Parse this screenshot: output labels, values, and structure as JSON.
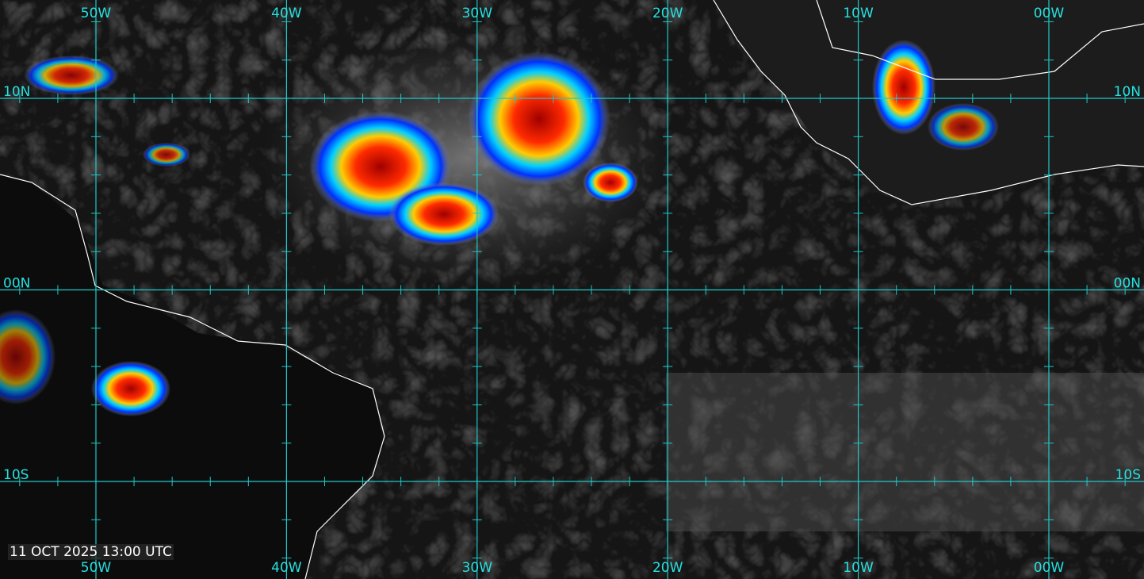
{
  "map": {
    "top_labels": [
      "50W",
      "40W",
      "30W",
      "20W",
      "10W",
      "00W"
    ],
    "bottom_labels": [
      "50W",
      "40W",
      "30W",
      "20W",
      "10W",
      "00W"
    ],
    "left_labels": [
      "10N",
      "00N",
      "10S"
    ],
    "right_labels": [
      "10N",
      "00N",
      "10S"
    ],
    "timestamp": "11 OCT 2025 13:00 UTC"
  }
}
